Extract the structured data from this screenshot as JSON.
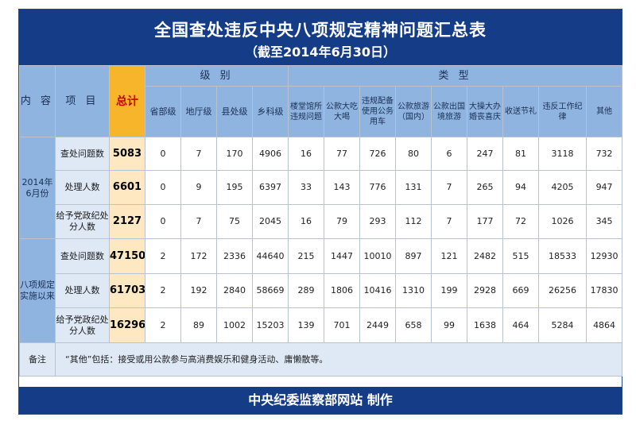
{
  "header": {
    "title": "全国查处违反中央八项规定精神问题汇总表",
    "subtitle": "（截至2014年6月30日）"
  },
  "columns": {
    "content": "内 容",
    "item": "项 目",
    "total": "总计",
    "level_group": "级 别",
    "type_group": "类 型",
    "levels": [
      "省部级",
      "地厅级",
      "县处级",
      "乡科级"
    ],
    "types": [
      "楼堂馆所违规问题",
      "公款大吃大喝",
      "违规配备使用公务用车",
      "公款旅游（国内）",
      "公款出国境旅游",
      "大操大办婚丧喜庆",
      "收送节礼",
      "违反工作纪律",
      "其他"
    ]
  },
  "periods": [
    {
      "label": "2014年6月份",
      "rows": [
        {
          "item": "查处问题数",
          "total": "5083",
          "levels": [
            "0",
            "7",
            "170",
            "4906"
          ],
          "types": [
            "16",
            "77",
            "726",
            "80",
            "6",
            "247",
            "81",
            "3118",
            "732"
          ]
        },
        {
          "item": "处理人数",
          "total": "6601",
          "levels": [
            "0",
            "9",
            "195",
            "6397"
          ],
          "types": [
            "33",
            "143",
            "776",
            "131",
            "7",
            "265",
            "94",
            "4205",
            "947"
          ]
        },
        {
          "item": "给予党政纪处分人数",
          "total": "2127",
          "levels": [
            "0",
            "7",
            "75",
            "2045"
          ],
          "types": [
            "16",
            "79",
            "293",
            "112",
            "7",
            "177",
            "72",
            "1026",
            "345"
          ]
        }
      ]
    },
    {
      "label": "八项规定实施以来",
      "rows": [
        {
          "item": "查处问题数",
          "total": "47150",
          "levels": [
            "2",
            "172",
            "2336",
            "44640"
          ],
          "types": [
            "215",
            "1447",
            "10010",
            "897",
            "121",
            "2482",
            "515",
            "18533",
            "12930"
          ]
        },
        {
          "item": "处理人数",
          "total": "61703",
          "levels": [
            "2",
            "192",
            "2840",
            "58669"
          ],
          "types": [
            "289",
            "1806",
            "10416",
            "1310",
            "199",
            "2928",
            "669",
            "26256",
            "17830"
          ]
        },
        {
          "item": "给予党政纪处分人数",
          "total": "16296",
          "levels": [
            "2",
            "89",
            "1002",
            "15203"
          ],
          "types": [
            "139",
            "701",
            "2449",
            "658",
            "99",
            "1638",
            "464",
            "5284",
            "4864"
          ]
        }
      ]
    }
  ],
  "note": {
    "label": "备注",
    "text": "“其他”包括：接受或用公款参与高消费娱乐和健身活动、庸懒散等。"
  },
  "footer": {
    "text": "中央纪委监察部网站 制作"
  },
  "colors": {
    "header_bg": "#153c86",
    "header_cell": "#8fb4df",
    "total_header": "#f7b52c",
    "total_cell": "#fde8c2",
    "total_header_text": "#c80000",
    "row_label_bg": "#dfe9f6"
  }
}
